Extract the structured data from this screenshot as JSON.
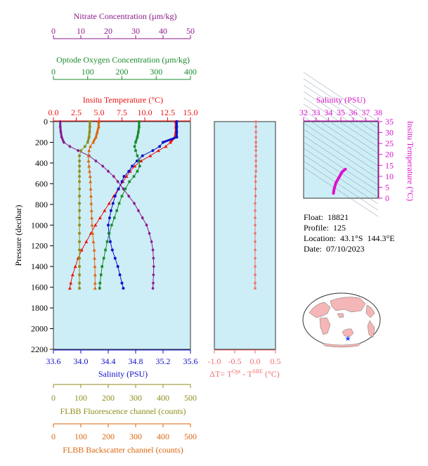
{
  "info": {
    "float_label": "Float:",
    "float": "18821",
    "profile_label": "Profile:",
    "profile": "125",
    "location_label": "Location:",
    "location": "43.1°S  144.3°E",
    "date_label": "Date:",
    "date": "07/10/2023"
  },
  "colors": {
    "panel_bg": "#cdeef6",
    "nitrate": "#8b1a8b",
    "oxygen": "#1a8c2e",
    "temperature": "#ee1111",
    "salinity": "#1111cc",
    "fluorescence": "#8e8e1e",
    "backscatter": "#dd6611",
    "dt": "#f07070",
    "magenta": "#dd11cc"
  },
  "chart_data": [
    {
      "type": "line",
      "panel": "main profiles",
      "ylabel": "Pressure (decibar)",
      "ylim": [
        2200,
        0
      ],
      "yticks": [
        0,
        200,
        400,
        600,
        800,
        1000,
        1200,
        1400,
        1600,
        1800,
        2000,
        2200
      ],
      "axes": {
        "nitrate": {
          "label": "Nitrate Concentration (µm/kg)",
          "range": [
            0,
            50
          ],
          "ticks": [
            0,
            10,
            20,
            30,
            40,
            50
          ]
        },
        "oxygen": {
          "label": "Optode Oxygen Concentration (µm/kg)",
          "range": [
            0,
            400
          ],
          "ticks": [
            0,
            100,
            200,
            300,
            400
          ]
        },
        "temperature": {
          "label": "Insitu Temperature (°C)",
          "range": [
            0,
            15
          ],
          "ticks": [
            "0.0",
            "2.5",
            "5.0",
            "7.5",
            "10.0",
            "12.5",
            "15.0"
          ]
        },
        "salinity": {
          "label": "Salinity (PSU)",
          "range": [
            33.6,
            35.6
          ],
          "ticks": [
            "33.6",
            "34.0",
            "34.4",
            "34.8",
            "35.2",
            "35.6"
          ]
        },
        "fluorescence": {
          "label": "FLBB Fluorescence channel (counts)",
          "range": [
            0,
            500
          ],
          "ticks": [
            0,
            100,
            200,
            300,
            400,
            500
          ]
        },
        "backscatter": {
          "label": "FLBB Backscatter channel (counts)",
          "range": [
            0,
            500
          ],
          "ticks": [
            0,
            100,
            200,
            300,
            400,
            500
          ]
        }
      },
      "series": [
        {
          "axis": "temperature",
          "marker": "triangle",
          "points": [
            [
              13.4,
              0
            ],
            [
              13.4,
              50
            ],
            [
              13.4,
              100
            ],
            [
              13.3,
              150
            ],
            [
              12.8,
              200
            ],
            [
              12.3,
              240
            ],
            [
              11.5,
              280
            ],
            [
              10.6,
              330
            ],
            [
              9.6,
              380
            ],
            [
              8.9,
              430
            ],
            [
              8.4,
              480
            ],
            [
              8.0,
              530
            ],
            [
              7.6,
              580
            ],
            [
              7.1,
              650
            ],
            [
              6.6,
              720
            ],
            [
              6.1,
              790
            ],
            [
              5.6,
              860
            ],
            [
              5.1,
              930
            ],
            [
              4.6,
              1000
            ],
            [
              4.1,
              1080
            ],
            [
              3.6,
              1160
            ],
            [
              3.1,
              1240
            ],
            [
              2.7,
              1320
            ],
            [
              2.4,
              1400
            ],
            [
              2.1,
              1480
            ],
            [
              1.9,
              1560
            ],
            [
              1.8,
              1610
            ]
          ]
        },
        {
          "axis": "salinity",
          "marker": "circle",
          "points": [
            [
              35.4,
              0
            ],
            [
              35.4,
              50
            ],
            [
              35.4,
              100
            ],
            [
              35.4,
              150
            ],
            [
              35.2,
              200
            ],
            [
              35.15,
              240
            ],
            [
              35.05,
              280
            ],
            [
              34.9,
              330
            ],
            [
              34.82,
              380
            ],
            [
              34.75,
              430
            ],
            [
              34.7,
              480
            ],
            [
              34.63,
              530
            ],
            [
              34.6,
              580
            ],
            [
              34.55,
              650
            ],
            [
              34.5,
              720
            ],
            [
              34.47,
              790
            ],
            [
              34.44,
              860
            ],
            [
              34.42,
              930
            ],
            [
              34.4,
              1000
            ],
            [
              34.41,
              1080
            ],
            [
              34.43,
              1160
            ],
            [
              34.46,
              1240
            ],
            [
              34.5,
              1320
            ],
            [
              34.54,
              1400
            ],
            [
              34.57,
              1480
            ],
            [
              34.6,
              1560
            ],
            [
              34.62,
              1610
            ]
          ]
        },
        {
          "axis": "nitrate",
          "marker": "diamond",
          "points": [
            [
              2.5,
              0
            ],
            [
              2.5,
              50
            ],
            [
              2.7,
              100
            ],
            [
              3.0,
              150
            ],
            [
              3.8,
              200
            ],
            [
              6.0,
              240
            ],
            [
              9.0,
              280
            ],
            [
              13.0,
              330
            ],
            [
              15.5,
              380
            ],
            [
              18.0,
              430
            ],
            [
              20.0,
              480
            ],
            [
              22.0,
              530
            ],
            [
              23.5,
              580
            ],
            [
              25.5,
              650
            ],
            [
              27.5,
              720
            ],
            [
              29.5,
              790
            ],
            [
              31.0,
              860
            ],
            [
              32.5,
              930
            ],
            [
              34.0,
              1000
            ],
            [
              35.0,
              1080
            ],
            [
              35.8,
              1160
            ],
            [
              36.3,
              1240
            ],
            [
              36.5,
              1320
            ],
            [
              36.6,
              1400
            ],
            [
              36.5,
              1480
            ],
            [
              36.4,
              1560
            ],
            [
              36.3,
              1610
            ]
          ]
        },
        {
          "axis": "oxygen",
          "marker": "square",
          "points": [
            [
              250,
              0
            ],
            [
              250,
              50
            ],
            [
              248,
              100
            ],
            [
              245,
              150
            ],
            [
              240,
              200
            ],
            [
              237,
              240
            ],
            [
              240,
              280
            ],
            [
              245,
              330
            ],
            [
              250,
              380
            ],
            [
              252,
              430
            ],
            [
              245,
              480
            ],
            [
              235,
              530
            ],
            [
              222,
              580
            ],
            [
              210,
              650
            ],
            [
              200,
              720
            ],
            [
              192,
              790
            ],
            [
              185,
              860
            ],
            [
              178,
              930
            ],
            [
              170,
              1000
            ],
            [
              163,
              1080
            ],
            [
              157,
              1160
            ],
            [
              152,
              1240
            ],
            [
              147,
              1320
            ],
            [
              142,
              1400
            ],
            [
              139,
              1480
            ],
            [
              136,
              1560
            ],
            [
              135,
              1610
            ]
          ]
        },
        {
          "axis": "fluorescence",
          "marker": "circle",
          "points": [
            [
              133,
              0
            ],
            [
              133,
              50
            ],
            [
              132,
              100
            ],
            [
              130,
              150
            ],
            [
              125,
              200
            ],
            [
              115,
              240
            ],
            [
              100,
              280
            ],
            [
              95,
              330
            ],
            [
              95,
              380
            ],
            [
              95,
              430
            ],
            [
              95,
              480
            ],
            [
              95,
              530
            ],
            [
              95,
              580
            ],
            [
              95,
              650
            ],
            [
              95,
              720
            ],
            [
              95,
              790
            ],
            [
              95,
              860
            ],
            [
              95,
              930
            ],
            [
              95,
              1000
            ],
            [
              95,
              1080
            ],
            [
              95,
              1160
            ],
            [
              95,
              1240
            ],
            [
              95,
              1320
            ],
            [
              95,
              1400
            ],
            [
              95,
              1480
            ],
            [
              95,
              1560
            ],
            [
              95,
              1610
            ]
          ]
        },
        {
          "axis": "backscatter",
          "marker": "triangle",
          "points": [
            [
              165,
              0
            ],
            [
              165,
              50
            ],
            [
              160,
              100
            ],
            [
              155,
              150
            ],
            [
              145,
              200
            ],
            [
              135,
              240
            ],
            [
              130,
              280
            ],
            [
              128,
              330
            ],
            [
              128,
              380
            ],
            [
              130,
              430
            ],
            [
              132,
              480
            ],
            [
              134,
              530
            ],
            [
              135,
              580
            ],
            [
              136,
              650
            ],
            [
              137,
              720
            ],
            [
              138,
              790
            ],
            [
              139,
              860
            ],
            [
              140,
              930
            ],
            [
              141,
              1000
            ],
            [
              143,
              1080
            ],
            [
              146,
              1160
            ],
            [
              149,
              1240
            ],
            [
              150,
              1320
            ],
            [
              151,
              1400
            ],
            [
              152,
              1480
            ],
            [
              152,
              1560
            ],
            [
              152,
              1610
            ]
          ]
        }
      ]
    },
    {
      "type": "line",
      "panel": "delta T",
      "xlabel_prefix": "ΔT= T",
      "xlabel_sup1": "Opt",
      "xlabel_mid": " - T",
      "xlabel_sup2": "SBE",
      "xlabel_suffix": " (°C)",
      "xlim": [
        -1.0,
        0.5
      ],
      "xticks": [
        "-1.0",
        "-0.5",
        "0.0",
        "0.5"
      ],
      "ylim": [
        2200,
        0
      ],
      "points": [
        [
          0.02,
          0
        ],
        [
          0.02,
          50
        ],
        [
          0.02,
          100
        ],
        [
          0.02,
          150
        ],
        [
          0.02,
          200
        ],
        [
          0.02,
          240
        ],
        [
          0.02,
          280
        ],
        [
          0.02,
          330
        ],
        [
          0.02,
          380
        ],
        [
          0.02,
          430
        ],
        [
          0.02,
          480
        ],
        [
          0.01,
          530
        ],
        [
          0.01,
          580
        ],
        [
          0.01,
          650
        ],
        [
          0.01,
          720
        ],
        [
          0.0,
          790
        ],
        [
          0.0,
          860
        ],
        [
          0.0,
          930
        ],
        [
          0.0,
          1000
        ],
        [
          0.0,
          1080
        ],
        [
          0.0,
          1160
        ],
        [
          0.0,
          1240
        ],
        [
          0.0,
          1320
        ],
        [
          0.0,
          1400
        ],
        [
          0.0,
          1480
        ],
        [
          0.0,
          1560
        ],
        [
          0.0,
          1610
        ]
      ]
    },
    {
      "type": "scatter",
      "panel": "T-S diagram",
      "xlabel": "Salinity (PSU)",
      "ylabel": "Insitu Temperature (°C)",
      "xlim": [
        32,
        38
      ],
      "ylim": [
        0,
        35
      ],
      "xticks": [
        "32",
        "33",
        "34",
        "35",
        "36",
        "37",
        "38"
      ],
      "yticks": [
        "0",
        "5",
        "10",
        "15",
        "20",
        "25",
        "30",
        "35"
      ],
      "points": [
        [
          34.4,
          2
        ],
        [
          34.42,
          3
        ],
        [
          34.45,
          4
        ],
        [
          34.5,
          5
        ],
        [
          34.55,
          6
        ],
        [
          34.6,
          7
        ],
        [
          34.7,
          8
        ],
        [
          34.8,
          9
        ],
        [
          34.9,
          10
        ],
        [
          35.0,
          11
        ],
        [
          35.1,
          12
        ],
        [
          35.2,
          12.5
        ],
        [
          35.3,
          13
        ],
        [
          35.4,
          13.4
        ]
      ]
    }
  ]
}
